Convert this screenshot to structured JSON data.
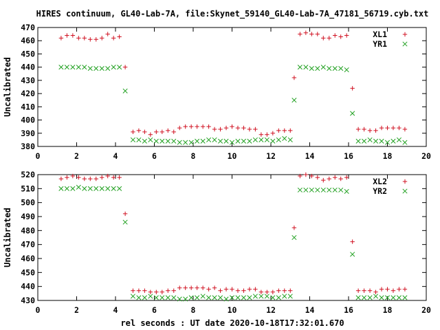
{
  "chart": {
    "title": "HIRES continuum, GL40-Lab-7A, file:Skynet_59140_GL40-Lab-7A_47181_56719.cyb.txt",
    "xlabel": "rel seconds : UT date 2020-10-18T17:32:01.670"
  },
  "colors": {
    "series1": "#d01020",
    "series2": "#20a020",
    "axis": "#000000"
  },
  "chart_data": [
    {
      "type": "scatter",
      "ylabel": "Uncalibrated",
      "xlim": [
        0,
        20
      ],
      "ylim": [
        380,
        470
      ],
      "xticks": [
        0,
        2,
        4,
        6,
        8,
        10,
        12,
        14,
        16,
        18,
        20
      ],
      "yticks": [
        380,
        390,
        400,
        410,
        420,
        430,
        440,
        450,
        460,
        470
      ],
      "legend_position": "top-right",
      "grid": false,
      "series": [
        {
          "name": "XL1",
          "marker": "+",
          "points": [
            [
              1.2,
              462
            ],
            [
              1.5,
              464
            ],
            [
              1.8,
              464
            ],
            [
              2.1,
              462
            ],
            [
              2.4,
              462
            ],
            [
              2.7,
              461
            ],
            [
              3.0,
              461
            ],
            [
              3.3,
              462
            ],
            [
              3.6,
              465
            ],
            [
              3.9,
              462
            ],
            [
              4.2,
              463
            ],
            [
              4.5,
              440
            ],
            [
              4.9,
              391
            ],
            [
              5.2,
              392
            ],
            [
              5.5,
              391
            ],
            [
              5.8,
              389
            ],
            [
              6.1,
              391
            ],
            [
              6.4,
              391
            ],
            [
              6.7,
              392
            ],
            [
              7.0,
              391
            ],
            [
              7.3,
              394
            ],
            [
              7.6,
              395
            ],
            [
              7.9,
              395
            ],
            [
              8.2,
              395
            ],
            [
              8.5,
              395
            ],
            [
              8.8,
              395
            ],
            [
              9.1,
              393
            ],
            [
              9.4,
              393
            ],
            [
              9.7,
              394
            ],
            [
              10.0,
              395
            ],
            [
              10.3,
              394
            ],
            [
              10.6,
              394
            ],
            [
              10.9,
              393
            ],
            [
              11.2,
              393
            ],
            [
              11.5,
              389
            ],
            [
              11.8,
              389
            ],
            [
              12.1,
              390
            ],
            [
              12.4,
              392
            ],
            [
              12.7,
              392
            ],
            [
              13.0,
              392
            ],
            [
              13.2,
              432
            ],
            [
              13.5,
              465
            ],
            [
              13.8,
              466
            ],
            [
              14.1,
              465
            ],
            [
              14.4,
              465
            ],
            [
              14.7,
              462
            ],
            [
              15.0,
              462
            ],
            [
              15.3,
              464
            ],
            [
              15.6,
              463
            ],
            [
              15.9,
              464
            ],
            [
              16.2,
              424
            ],
            [
              16.5,
              393
            ],
            [
              16.8,
              393
            ],
            [
              17.1,
              392
            ],
            [
              17.4,
              392
            ],
            [
              17.7,
              394
            ],
            [
              18.0,
              394
            ],
            [
              18.3,
              394
            ],
            [
              18.6,
              394
            ],
            [
              18.9,
              393
            ]
          ]
        },
        {
          "name": "YR1",
          "marker": "x",
          "points": [
            [
              1.2,
              440
            ],
            [
              1.5,
              440
            ],
            [
              1.8,
              440
            ],
            [
              2.1,
              440
            ],
            [
              2.4,
              440
            ],
            [
              2.7,
              439
            ],
            [
              3.0,
              439
            ],
            [
              3.3,
              439
            ],
            [
              3.6,
              439
            ],
            [
              3.9,
              440
            ],
            [
              4.2,
              440
            ],
            [
              4.5,
              422
            ],
            [
              4.9,
              385
            ],
            [
              5.2,
              385
            ],
            [
              5.5,
              384
            ],
            [
              5.8,
              385
            ],
            [
              6.1,
              384
            ],
            [
              6.4,
              384
            ],
            [
              6.7,
              384
            ],
            [
              7.0,
              384
            ],
            [
              7.3,
              383
            ],
            [
              7.6,
              383
            ],
            [
              7.9,
              383
            ],
            [
              8.2,
              384
            ],
            [
              8.5,
              384
            ],
            [
              8.8,
              385
            ],
            [
              9.1,
              385
            ],
            [
              9.4,
              384
            ],
            [
              9.7,
              384
            ],
            [
              10.0,
              383
            ],
            [
              10.3,
              384
            ],
            [
              10.6,
              384
            ],
            [
              10.9,
              384
            ],
            [
              11.2,
              385
            ],
            [
              11.5,
              385
            ],
            [
              11.8,
              385
            ],
            [
              12.1,
              384
            ],
            [
              12.4,
              385
            ],
            [
              12.7,
              386
            ],
            [
              13.0,
              385
            ],
            [
              13.2,
              415
            ],
            [
              13.5,
              440
            ],
            [
              13.8,
              440
            ],
            [
              14.1,
              439
            ],
            [
              14.4,
              439
            ],
            [
              14.7,
              440
            ],
            [
              15.0,
              439
            ],
            [
              15.3,
              439
            ],
            [
              15.6,
              439
            ],
            [
              15.9,
              438
            ],
            [
              16.2,
              405
            ],
            [
              16.5,
              384
            ],
            [
              16.8,
              384
            ],
            [
              17.1,
              385
            ],
            [
              17.4,
              384
            ],
            [
              17.7,
              384
            ],
            [
              18.0,
              383
            ],
            [
              18.3,
              384
            ],
            [
              18.6,
              385
            ],
            [
              18.9,
              383
            ]
          ]
        }
      ]
    },
    {
      "type": "scatter",
      "ylabel": "Uncalibrated",
      "xlim": [
        0,
        20
      ],
      "ylim": [
        430,
        520
      ],
      "xticks": [
        0,
        2,
        4,
        6,
        8,
        10,
        12,
        14,
        16,
        18,
        20
      ],
      "yticks": [
        430,
        440,
        450,
        460,
        470,
        480,
        490,
        500,
        510,
        520
      ],
      "legend_position": "top-right",
      "grid": false,
      "series": [
        {
          "name": "XL2",
          "marker": "+",
          "points": [
            [
              1.2,
              517
            ],
            [
              1.5,
              518
            ],
            [
              1.8,
              519
            ],
            [
              2.1,
              518
            ],
            [
              2.4,
              517
            ],
            [
              2.7,
              517
            ],
            [
              3.0,
              517
            ],
            [
              3.3,
              518
            ],
            [
              3.6,
              519
            ],
            [
              3.9,
              518
            ],
            [
              4.2,
              518
            ],
            [
              4.5,
              492
            ],
            [
              4.9,
              437
            ],
            [
              5.2,
              437
            ],
            [
              5.5,
              437
            ],
            [
              5.8,
              436
            ],
            [
              6.1,
              436
            ],
            [
              6.4,
              436
            ],
            [
              6.7,
              437
            ],
            [
              7.0,
              437
            ],
            [
              7.3,
              439
            ],
            [
              7.6,
              439
            ],
            [
              7.9,
              439
            ],
            [
              8.2,
              439
            ],
            [
              8.5,
              439
            ],
            [
              8.8,
              438
            ],
            [
              9.1,
              439
            ],
            [
              9.4,
              437
            ],
            [
              9.7,
              438
            ],
            [
              10.0,
              438
            ],
            [
              10.3,
              437
            ],
            [
              10.6,
              437
            ],
            [
              10.9,
              438
            ],
            [
              11.2,
              438
            ],
            [
              11.5,
              436
            ],
            [
              11.8,
              436
            ],
            [
              12.1,
              436
            ],
            [
              12.4,
              437
            ],
            [
              12.7,
              437
            ],
            [
              13.0,
              437
            ],
            [
              13.2,
              482
            ],
            [
              13.5,
              519
            ],
            [
              13.8,
              520
            ],
            [
              14.1,
              519
            ],
            [
              14.4,
              518
            ],
            [
              14.7,
              516
            ],
            [
              15.0,
              517
            ],
            [
              15.3,
              518
            ],
            [
              15.6,
              517
            ],
            [
              15.9,
              518
            ],
            [
              16.2,
              472
            ],
            [
              16.5,
              437
            ],
            [
              16.8,
              437
            ],
            [
              17.1,
              437
            ],
            [
              17.4,
              436
            ],
            [
              17.7,
              438
            ],
            [
              18.0,
              438
            ],
            [
              18.3,
              437
            ],
            [
              18.6,
              438
            ],
            [
              18.9,
              438
            ]
          ]
        },
        {
          "name": "YR2",
          "marker": "x",
          "points": [
            [
              1.2,
              510
            ],
            [
              1.5,
              510
            ],
            [
              1.8,
              510
            ],
            [
              2.1,
              511
            ],
            [
              2.4,
              510
            ],
            [
              2.7,
              510
            ],
            [
              3.0,
              510
            ],
            [
              3.3,
              510
            ],
            [
              3.6,
              510
            ],
            [
              3.9,
              510
            ],
            [
              4.2,
              510
            ],
            [
              4.5,
              486
            ],
            [
              4.9,
              433
            ],
            [
              5.2,
              432
            ],
            [
              5.5,
              432
            ],
            [
              5.8,
              433
            ],
            [
              6.1,
              432
            ],
            [
              6.4,
              432
            ],
            [
              6.7,
              432
            ],
            [
              7.0,
              432
            ],
            [
              7.3,
              431
            ],
            [
              7.6,
              431
            ],
            [
              7.9,
              432
            ],
            [
              8.2,
              432
            ],
            [
              8.5,
              433
            ],
            [
              8.8,
              432
            ],
            [
              9.1,
              432
            ],
            [
              9.4,
              432
            ],
            [
              9.7,
              431
            ],
            [
              10.0,
              432
            ],
            [
              10.3,
              432
            ],
            [
              10.6,
              432
            ],
            [
              10.9,
              432
            ],
            [
              11.2,
              433
            ],
            [
              11.5,
              433
            ],
            [
              11.8,
              433
            ],
            [
              12.1,
              432
            ],
            [
              12.4,
              432
            ],
            [
              12.7,
              433
            ],
            [
              13.0,
              433
            ],
            [
              13.2,
              475
            ],
            [
              13.5,
              509
            ],
            [
              13.8,
              509
            ],
            [
              14.1,
              509
            ],
            [
              14.4,
              509
            ],
            [
              14.7,
              509
            ],
            [
              15.0,
              509
            ],
            [
              15.3,
              509
            ],
            [
              15.6,
              509
            ],
            [
              15.9,
              508
            ],
            [
              16.2,
              463
            ],
            [
              16.5,
              432
            ],
            [
              16.8,
              432
            ],
            [
              17.1,
              432
            ],
            [
              17.4,
              433
            ],
            [
              17.7,
              432
            ],
            [
              18.0,
              432
            ],
            [
              18.3,
              432
            ],
            [
              18.6,
              432
            ],
            [
              18.9,
              432
            ]
          ]
        }
      ]
    }
  ]
}
